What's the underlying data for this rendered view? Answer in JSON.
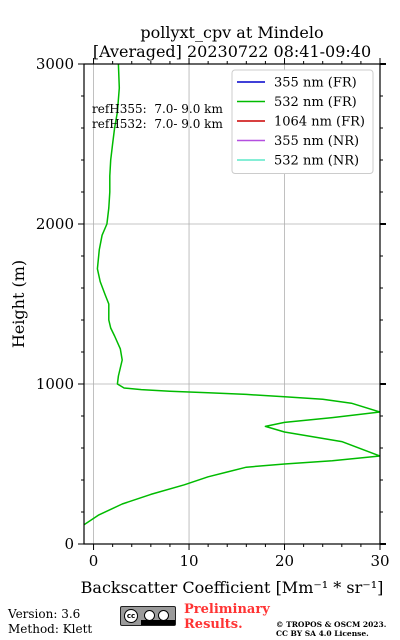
{
  "chart_data": {
    "type": "line",
    "title": "pollyxt_cpv at Mindelo",
    "subtitle": "[Averaged] 20230722 08:41-09:40",
    "xlabel": "Backscatter Coefficient [Mm⁻¹ * sr⁻¹]",
    "ylabel": "Height (m)",
    "xlim": [
      -1,
      30
    ],
    "ylim": [
      0,
      3000
    ],
    "x_ticks": [
      0,
      10,
      20,
      30
    ],
    "y_ticks": [
      0,
      1000,
      2000,
      3000
    ],
    "grid": true,
    "legend_position": "top-right",
    "annotations": [
      "refH355:  7.0- 9.0 km",
      "refH532:  7.0- 9.0 km"
    ],
    "series": [
      {
        "name": "355 nm (FR)",
        "color": "#0000cc",
        "x": [],
        "y": []
      },
      {
        "name": "532 nm (FR)",
        "color": "#00bb00",
        "x": [
          -1,
          0.5,
          3,
          6,
          9.5,
          12,
          14,
          16,
          20,
          25,
          30,
          26,
          20,
          18,
          20,
          25,
          30,
          27,
          24,
          20,
          16,
          12,
          8,
          5,
          3.2,
          2.5,
          2.6,
          2.8,
          3,
          2.8,
          2.2,
          1.8,
          1.6,
          1.6,
          1.2,
          0.7,
          0.4,
          0.6,
          0.9,
          1.4,
          1.6,
          1.7,
          1.7,
          1.8,
          2.0,
          2.2,
          2.5,
          2.7,
          2.6
        ],
        "y": [
          120,
          180,
          250,
          310,
          370,
          420,
          450,
          480,
          500,
          520,
          550,
          640,
          700,
          735,
          760,
          790,
          825,
          880,
          905,
          920,
          935,
          945,
          955,
          965,
          975,
          1000,
          1050,
          1100,
          1150,
          1220,
          1300,
          1350,
          1400,
          1500,
          1560,
          1640,
          1720,
          1840,
          1930,
          2000,
          2100,
          2200,
          2300,
          2400,
          2500,
          2600,
          2700,
          2850,
          3000
        ]
      },
      {
        "name": "1064 nm (FR)",
        "color": "#cc0000",
        "x": [],
        "y": []
      },
      {
        "name": "355 nm (NR)",
        "color": "#b44fe0",
        "x": [],
        "y": []
      },
      {
        "name": "532 nm (NR)",
        "color": "#5de8c8",
        "x": [],
        "y": []
      }
    ]
  },
  "footer": {
    "version": "Version: 3.6",
    "method": "Method: Klett",
    "license_badge": {
      "icon": "cc-by-sa-icon",
      "cc_text": "cc"
    },
    "preliminary": [
      "Preliminary",
      "Results."
    ],
    "copyright": [
      "© TROPOS & OSCM 2023.",
      "CC BY SA 4.0 License."
    ]
  }
}
